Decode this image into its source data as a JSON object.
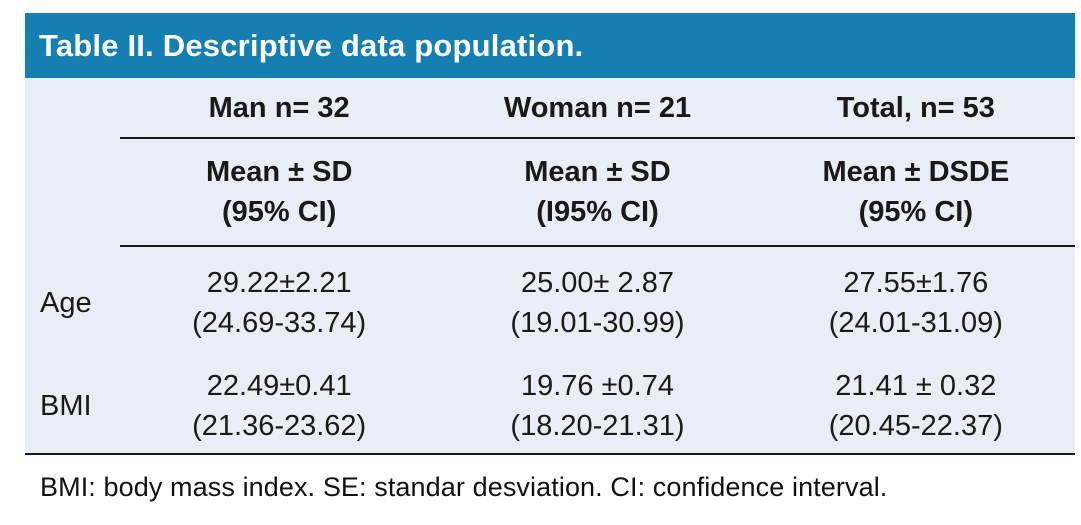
{
  "title": "Table II. Descriptive data population.",
  "colors": {
    "title_bar_bg": "#147fb0",
    "title_text": "#ffffff",
    "table_bg": "#e9edf6",
    "rule": "#1a1a1a",
    "text": "#1a1a1a"
  },
  "columns": [
    {
      "group": "Man n= 32",
      "sub_line1": "Mean ± SD",
      "sub_line2": "(95% CI)"
    },
    {
      "group": "Woman n= 21",
      "sub_line1": "Mean ± SD",
      "sub_line2": "(I95% CI)"
    },
    {
      "group": "Total, n= 53",
      "sub_line1": "Mean ± DSDE",
      "sub_line2": "(95% CI)"
    }
  ],
  "rows": [
    {
      "label": "Age",
      "man_line1": "29.22±2.21",
      "man_line2": "(24.69-33.74)",
      "woman_line1": "25.00± 2.87",
      "woman_line2": "(19.01-30.99)",
      "total_line1": "27.55±1.76",
      "total_line2": "(24.01-31.09)"
    },
    {
      "label": "BMI",
      "man_line1": "22.49±0.41",
      "man_line2": "(21.36-23.62)",
      "woman_line1": "19.76 ±0.74",
      "woman_line2": "(18.20-21.31)",
      "total_line1": "21.41 ± 0.32",
      "total_line2": "(20.45-22.37)"
    }
  ],
  "footnote": "BMI: body mass index. SE: standar desviation. CI: confidence interval.",
  "chart_data": {
    "type": "table",
    "title": "Table II. Descriptive data population.",
    "column_groups": [
      "Man n= 32",
      "Woman n= 21",
      "Total, n= 53"
    ],
    "column_subheaders": [
      "Mean ± SD (95% CI)",
      "Mean ± SD (I95% CI)",
      "Mean ± DSDE (95% CI)"
    ],
    "row_labels": [
      "Age",
      "BMI"
    ],
    "cells": [
      [
        "29.22±2.21 (24.69-33.74)",
        "25.00± 2.87 (19.01-30.99)",
        "27.55±1.76 (24.01-31.09)"
      ],
      [
        "22.49±0.41 (21.36-23.62)",
        "19.76 ±0.74 (18.20-21.31)",
        "21.41 ± 0.32 (20.45-22.37)"
      ]
    ],
    "footnote": "BMI: body mass index. SE: standar desviation. CI: confidence interval."
  }
}
